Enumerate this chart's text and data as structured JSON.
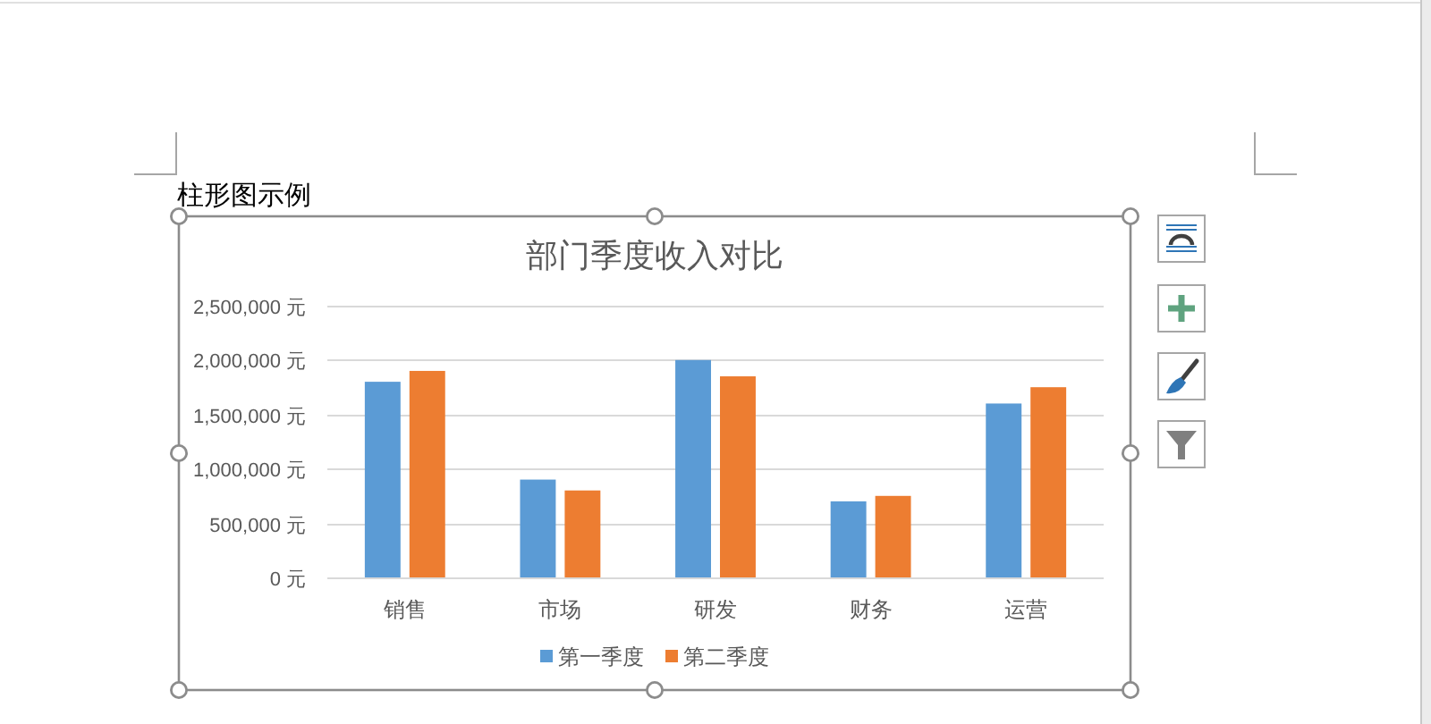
{
  "chart_data": {
    "type": "bar",
    "title": "部门季度收入对比",
    "categories": [
      "销售",
      "市场",
      "研发",
      "财务",
      "运营"
    ],
    "series": [
      {
        "name": "第一季度",
        "color": "#5b9bd5",
        "values": [
          1800000,
          900000,
          2000000,
          700000,
          1600000
        ]
      },
      {
        "name": "第二季度",
        "color": "#ed7d31",
        "values": [
          1900000,
          800000,
          1850000,
          750000,
          1750000
        ]
      }
    ],
    "ylim": [
      0,
      2500000
    ],
    "yticks": [
      {
        "value": 0,
        "label": "0 元"
      },
      {
        "value": 500000,
        "label": "500,000 元"
      },
      {
        "value": 1000000,
        "label": "1,000,000 元"
      },
      {
        "value": 1500000,
        "label": "1,500,000 元"
      },
      {
        "value": 2000000,
        "label": "2,000,000 元"
      },
      {
        "value": 2500000,
        "label": "2,500,000 元"
      }
    ],
    "grid": "y",
    "legend": "bottom",
    "annotations": [
      "柱形图示例"
    ]
  }
}
